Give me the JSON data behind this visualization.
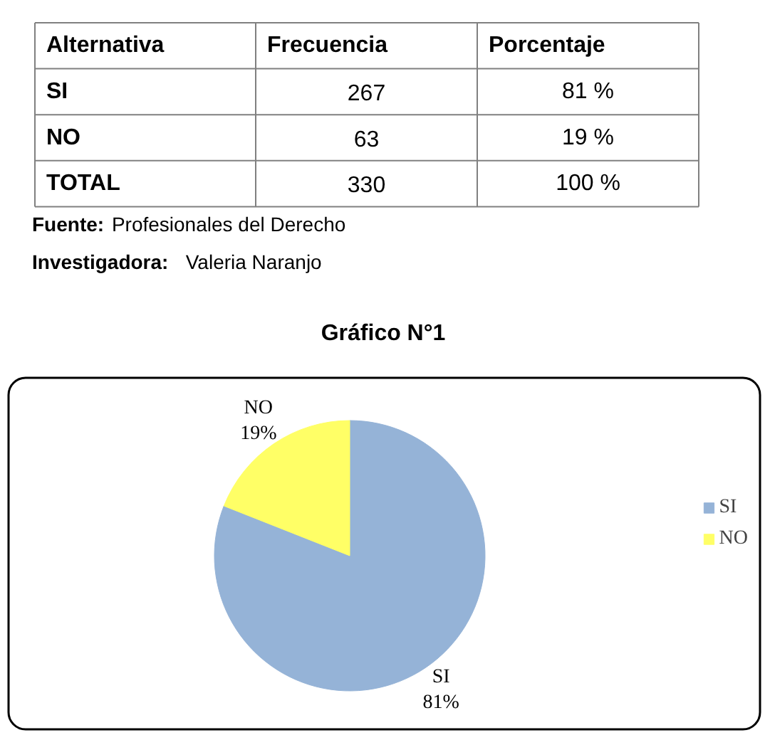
{
  "chart_data": [
    {
      "type": "other",
      "xlabel": "Alternativa",
      "categories": [
        "SI",
        "NO",
        "TOTAL"
      ],
      "series": [
        {
          "name": "Frecuencia",
          "values": [
            267,
            63,
            330
          ]
        },
        {
          "name": "Porcentaje",
          "values": [
            81,
            19,
            100
          ],
          "value_labels": [
            "81 %",
            "19 %",
            "100 %"
          ]
        }
      ],
      "data_labels": true,
      "annotations": [
        "Fuente: Profesionales del Derecho",
        "Investigadora: Valeria Naranjo"
      ]
    },
    {
      "type": "pie",
      "title": "Gráfico N°1",
      "categories": [
        "SI",
        "NO"
      ],
      "values": [
        81,
        19
      ],
      "colors": [
        "#95b3d7",
        "#ffff66"
      ],
      "value_labels": [
        "81%",
        "19%"
      ],
      "legend": "right"
    }
  ]
}
